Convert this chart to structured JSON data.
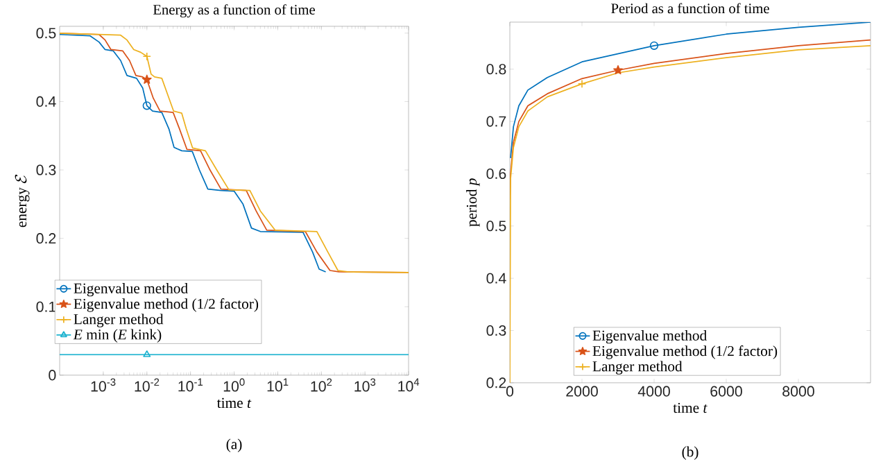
{
  "chart_data": [
    {
      "type": "line",
      "title": "Energy as a function of time",
      "xlabel": "time *t*",
      "ylabel": "\\mathrm{energy}\\ \\mathcal{E}",
      "log": "x",
      "xlim": [
        0.0001,
        10000
      ],
      "ylim": [
        0,
        0.51
      ],
      "xticks": [
        {
          "value": 0.001,
          "label": "10$^{-3}$"
        },
        {
          "value": 0.01,
          "label": "10$^{-2}$"
        },
        {
          "value": 0.1,
          "label": "10$^{-1}$"
        },
        {
          "value": 1,
          "label": "10$^{0}$"
        },
        {
          "value": 10,
          "label": "10$^{1}$"
        },
        {
          "value": 100,
          "label": "10$^{2}$"
        },
        {
          "value": 1000,
          "label": "10$^{3}$"
        },
        {
          "value": 10000,
          "label": "10$^{4}$"
        }
      ],
      "yticks": [
        0,
        0.1,
        0.2,
        0.3,
        0.4,
        0.5
      ],
      "grid": false,
      "legend": "left",
      "line_style": "solid",
      "annotations": [
        "(a)"
      ],
      "series": [
        {
          "name": "Eigenvalue method",
          "color": "#0072bd",
          "x": [
            0.0001,
            0.0005,
            0.0008,
            0.0011,
            0.0017,
            0.0025,
            0.0035,
            0.0058,
            0.008,
            0.01,
            0.0135,
            0.022,
            0.032,
            0.042,
            0.063,
            0.11,
            0.16,
            0.25,
            0.5,
            1,
            1.6,
            2.5,
            4,
            38,
            63,
            89,
            126
          ],
          "values": [
            0.498,
            0.496,
            0.487,
            0.476,
            0.474,
            0.46,
            0.438,
            0.434,
            0.42,
            0.394,
            0.386,
            0.384,
            0.36,
            0.333,
            0.328,
            0.327,
            0.3,
            0.272,
            0.27,
            0.269,
            0.25,
            0.215,
            0.21,
            0.209,
            0.18,
            0.155,
            0.151
          ]
        },
        {
          "name": "Eigenvalue method (1/2 factor)",
          "color": "#d95319",
          "x": [
            0.0001,
            0.0008,
            0.0011,
            0.0015,
            0.0028,
            0.004,
            0.0056,
            0.008,
            0.01,
            0.014,
            0.02,
            0.04,
            0.056,
            0.083,
            0.17,
            0.28,
            0.5,
            1.9,
            3.2,
            5.6,
            43,
            79,
            158,
            251,
            10000
          ],
          "values": [
            0.5,
            0.498,
            0.49,
            0.476,
            0.474,
            0.46,
            0.438,
            0.436,
            0.432,
            0.405,
            0.386,
            0.384,
            0.36,
            0.33,
            0.328,
            0.3,
            0.272,
            0.27,
            0.24,
            0.212,
            0.21,
            0.18,
            0.153,
            0.151,
            0.15
          ]
        },
        {
          "name": "Langer method",
          "color": "#edb120",
          "x": [
            0.0001,
            0.0025,
            0.0035,
            0.005,
            0.0072,
            0.01,
            0.0125,
            0.015,
            0.022,
            0.03,
            0.041,
            0.063,
            0.08,
            0.112,
            0.22,
            0.4,
            0.76,
            2.3,
            4,
            8.7,
            79,
            141,
            240,
            400,
            10000
          ],
          "values": [
            0.5,
            0.497,
            0.49,
            0.476,
            0.472,
            0.466,
            0.44,
            0.436,
            0.434,
            0.41,
            0.386,
            0.383,
            0.36,
            0.332,
            0.328,
            0.3,
            0.271,
            0.27,
            0.24,
            0.212,
            0.21,
            0.18,
            0.153,
            0.151,
            0.15
          ]
        },
        {
          "name": "*E* min (*E* kink)",
          "color": "#1ab2cf",
          "x": [
            0.0001,
            10000
          ],
          "values": [
            0.03,
            0.03
          ]
        },
        {
          "type": "scatter",
          "color": "#0072bd",
          "marker": "circle",
          "x": [
            0.01
          ],
          "values": [
            0.394
          ]
        },
        {
          "type": "scatter",
          "color": "#d95319",
          "marker": "star",
          "x": [
            0.01
          ],
          "values": [
            0.432
          ]
        },
        {
          "type": "scatter",
          "color": "#edb120",
          "marker": "cross",
          "x": [
            0.01
          ],
          "values": [
            0.466
          ]
        },
        {
          "type": "scatter",
          "color": "#1ab2cf",
          "marker": "triangle",
          "x": [
            0.01
          ],
          "values": [
            0.03
          ]
        }
      ]
    },
    {
      "type": "line",
      "title": "Period as a function of time",
      "xlabel": "time *t*",
      "ylabel": "period *p*",
      "xlim": [
        0,
        10000
      ],
      "ylim": [
        0.2,
        0.89
      ],
      "xticks": [
        0,
        2000,
        4000,
        6000,
        8000
      ],
      "yticks": [
        0.2,
        0.3,
        0.4,
        0.5,
        0.6,
        0.7,
        0.8
      ],
      "grid": false,
      "legend": "bottom",
      "line_style": "solid",
      "annotations": [
        "(b)"
      ],
      "series": [
        {
          "name": "Eigenvalue method",
          "color": "#0072bd",
          "x": [
            20,
            100,
            250,
            500,
            1040,
            2000,
            4000,
            6000,
            8000,
            10000
          ],
          "values": [
            0.63,
            0.69,
            0.73,
            0.76,
            0.784,
            0.814,
            0.845,
            0.867,
            0.88,
            0.89
          ]
        },
        {
          "name": "Eigenvalue method (1/2 factor)",
          "color": "#d95319",
          "x": [
            0,
            20,
            100,
            250,
            500,
            1040,
            2000,
            3000,
            4000,
            6000,
            8000,
            10000
          ],
          "values": [
            0.55,
            0.6,
            0.66,
            0.7,
            0.73,
            0.753,
            0.782,
            0.798,
            0.811,
            0.83,
            0.845,
            0.856
          ]
        },
        {
          "name": "Langer method",
          "color": "#edb120",
          "x": [
            0,
            20,
            100,
            250,
            500,
            1040,
            2000,
            3000,
            4000,
            6000,
            8000,
            10000
          ],
          "values": [
            0.2,
            0.59,
            0.65,
            0.69,
            0.72,
            0.747,
            0.772,
            0.793,
            0.804,
            0.822,
            0.837,
            0.845
          ]
        },
        {
          "type": "scatter",
          "color": "#0072bd",
          "marker": "circle",
          "x": [
            4000
          ],
          "values": [
            0.845
          ]
        },
        {
          "type": "scatter",
          "color": "#d95319",
          "marker": "star",
          "x": [
            3000
          ],
          "values": [
            0.798
          ]
        },
        {
          "type": "scatter",
          "color": "#edb120",
          "marker": "cross",
          "x": [
            2000
          ],
          "values": [
            0.772
          ]
        }
      ]
    }
  ]
}
